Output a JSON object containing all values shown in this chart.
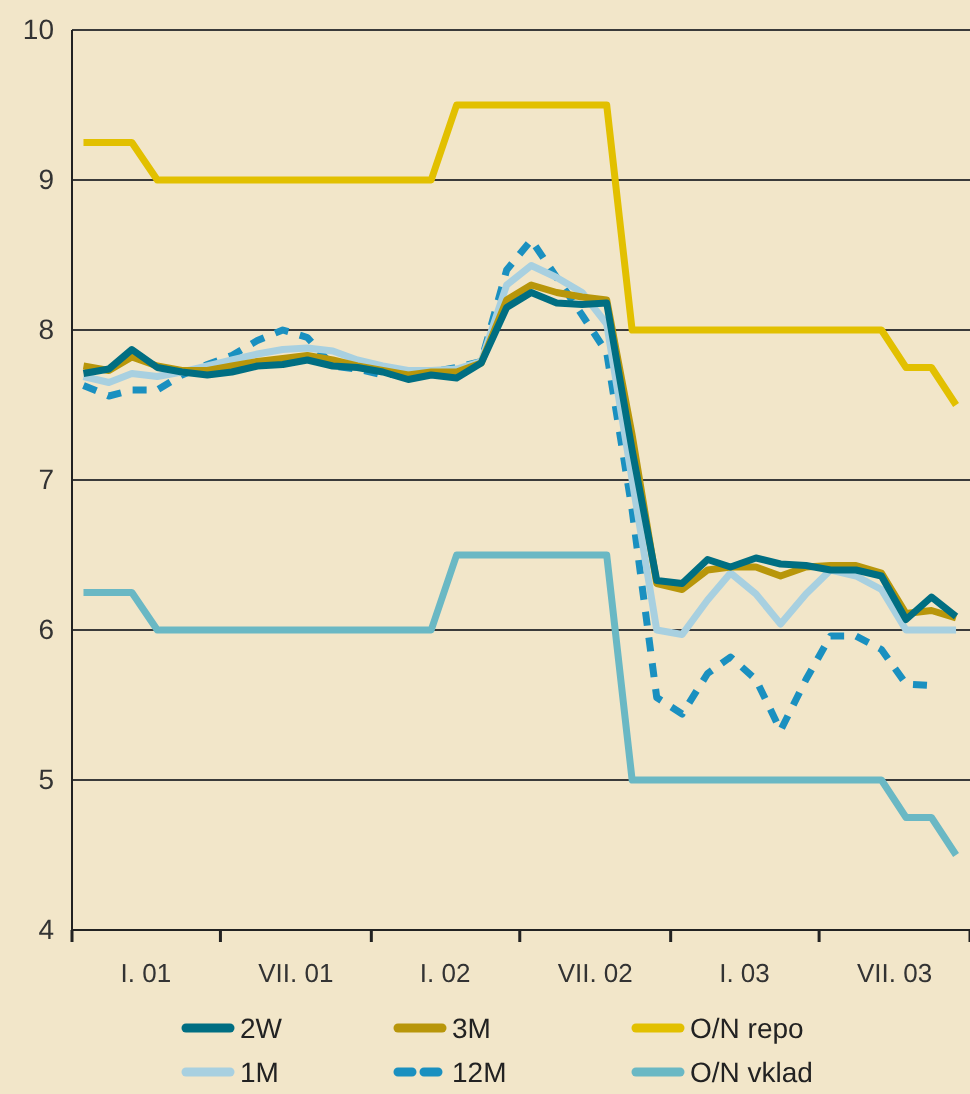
{
  "chart_data": {
    "type": "line",
    "x": [
      "2001-01-15",
      "2001-02-15",
      "2001-03-15",
      "2001-04-15",
      "2001-05-15",
      "2001-06-15",
      "2001-07-15",
      "2001-08-15",
      "2001-09-15",
      "2001-10-15",
      "2001-11-15",
      "2001-12-15",
      "2002-01-15",
      "2002-02-15",
      "2002-03-15",
      "2002-04-15",
      "2002-05-15",
      "2002-06-15",
      "2002-07-15",
      "2002-08-15",
      "2002-09-15",
      "2002-10-15",
      "2002-11-15",
      "2002-12-15",
      "2003-01-15",
      "2003-02-15",
      "2003-03-15",
      "2003-04-15",
      "2003-05-15",
      "2003-06-15",
      "2003-07-15",
      "2003-08-15",
      "2003-09-15",
      "2003-10-15",
      "2003-11-15",
      "2003-12-15"
    ],
    "series": [
      {
        "name": "2W",
        "color": "#006e82",
        "values": [
          7.71,
          7.74,
          7.87,
          7.75,
          7.72,
          7.7,
          7.72,
          7.76,
          7.77,
          7.8,
          7.76,
          7.75,
          7.72,
          7.67,
          7.7,
          7.68,
          7.78,
          8.15,
          8.25,
          8.18,
          8.17,
          8.18,
          7.2,
          6.33,
          6.31,
          6.47,
          6.42,
          6.48,
          6.44,
          6.43,
          6.4,
          6.4,
          6.36,
          6.07,
          6.22,
          6.09
        ]
      },
      {
        "name": "3M",
        "color": "#b8960a",
        "values": [
          7.76,
          7.73,
          7.82,
          7.76,
          7.73,
          7.73,
          7.76,
          7.79,
          7.81,
          7.83,
          7.8,
          7.76,
          7.73,
          7.7,
          7.72,
          7.72,
          7.78,
          8.2,
          8.3,
          8.25,
          8.22,
          8.2,
          7.3,
          6.31,
          6.27,
          6.4,
          6.42,
          6.42,
          6.36,
          6.42,
          6.43,
          6.43,
          6.38,
          6.11,
          6.13,
          6.08
        ]
      },
      {
        "name": "O/N repo",
        "color": "#e2c000",
        "values": [
          9.25,
          9.25,
          9.25,
          9,
          9,
          9,
          9,
          9,
          9,
          9,
          9,
          9,
          9,
          9,
          9,
          9.5,
          9.5,
          9.5,
          9.5,
          9.5,
          9.5,
          9.5,
          8,
          8,
          8,
          8,
          8,
          8,
          8,
          8,
          8,
          8,
          8,
          7.75,
          7.75,
          7.5
        ]
      },
      {
        "name": "1M",
        "color": "#a8d0e0",
        "values": [
          7.69,
          7.65,
          7.71,
          7.69,
          7.72,
          7.76,
          7.8,
          7.84,
          7.87,
          7.88,
          7.86,
          7.8,
          7.76,
          7.73,
          7.73,
          7.74,
          7.79,
          8.3,
          8.43,
          8.35,
          8.25,
          8.04,
          7.0,
          6.0,
          5.97,
          6.2,
          6.38,
          6.24,
          6.04,
          6.24,
          6.4,
          6.36,
          6.27,
          6.0,
          6.0,
          6.0
        ]
      },
      {
        "name": "12M",
        "color": "#1a90c0",
        "line_style": "dashed",
        "values": [
          7.63,
          7.56,
          7.6,
          7.6,
          7.7,
          7.77,
          7.83,
          7.93,
          8.0,
          7.95,
          7.76,
          7.74,
          7.7,
          7.71,
          7.72,
          7.75,
          7.79,
          8.4,
          8.6,
          8.35,
          8.1,
          7.85,
          6.8,
          5.55,
          5.44,
          5.71,
          5.82,
          5.67,
          5.33,
          5.67,
          5.96,
          5.96,
          5.87,
          5.64,
          5.63,
          null
        ]
      },
      {
        "name": "O/N vklad",
        "color": "#6ab8c4",
        "values": [
          6.25,
          6.25,
          6.25,
          6,
          6,
          6,
          6,
          6,
          6,
          6,
          6,
          6,
          6,
          6,
          6,
          6.5,
          6.5,
          6.5,
          6.5,
          6.5,
          6.5,
          6.5,
          5,
          5,
          5,
          5,
          5,
          5,
          5,
          5,
          5,
          5,
          5,
          4.75,
          4.75,
          4.5
        ]
      }
    ],
    "xlim": [
      "2001-01-01",
      "2004-01-01"
    ],
    "xticks": [
      {
        "value": "2001-01-01",
        "label": null
      },
      {
        "value": "2001-04-01",
        "label": "I. 01"
      },
      {
        "value": "2001-07-01",
        "label": null
      },
      {
        "value": "2001-10-01",
        "label": "VII. 01"
      },
      {
        "value": "2002-01-01",
        "label": null
      },
      {
        "value": "2002-04-01",
        "label": "I. 02"
      },
      {
        "value": "2002-07-01",
        "label": null
      },
      {
        "value": "2002-10-01",
        "label": "VII. 02"
      },
      {
        "value": "2003-01-01",
        "label": null
      },
      {
        "value": "2003-04-01",
        "label": "I. 03"
      },
      {
        "value": "2003-07-01",
        "label": null
      },
      {
        "value": "2003-10-01",
        "label": "VII. 03"
      },
      {
        "value": "2004-01-01",
        "label": null
      }
    ],
    "ylim": [
      4,
      10
    ],
    "yticks": [
      4,
      5,
      6,
      7,
      8,
      9,
      10
    ],
    "grid": "y",
    "legend": "bottom",
    "line_style": "solid",
    "marker": "none"
  }
}
